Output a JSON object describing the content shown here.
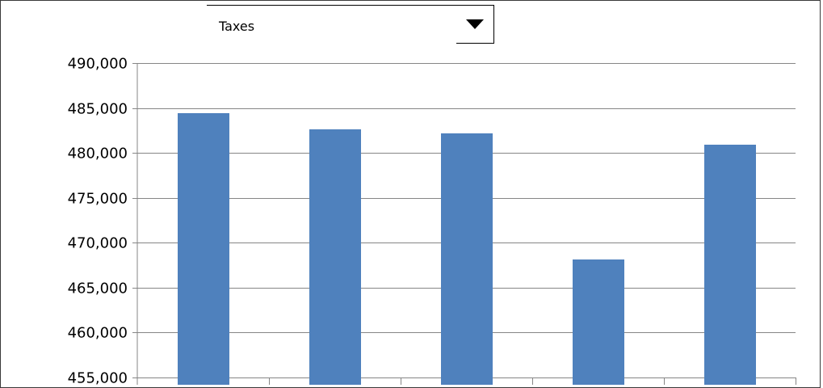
{
  "selector": {
    "value": "Taxes"
  },
  "colors": {
    "bar": "#4f81bd",
    "grid": "#868686",
    "axis": "#868686"
  },
  "chart_data": {
    "type": "bar",
    "categories": [
      "",
      "",
      "",
      "",
      ""
    ],
    "values": [
      484400,
      482600,
      482200,
      468100,
      480900
    ],
    "ylim": [
      455000,
      490000
    ],
    "yticks": [
      455000,
      460000,
      465000,
      470000,
      475000,
      480000,
      485000,
      490000
    ],
    "ytick_labels": [
      "455,000",
      "460,000",
      "465,000",
      "470,000",
      "475,000",
      "480,000",
      "485,000",
      "490,000"
    ],
    "grid": true,
    "title": "",
    "xlabel": "",
    "ylabel": ""
  }
}
